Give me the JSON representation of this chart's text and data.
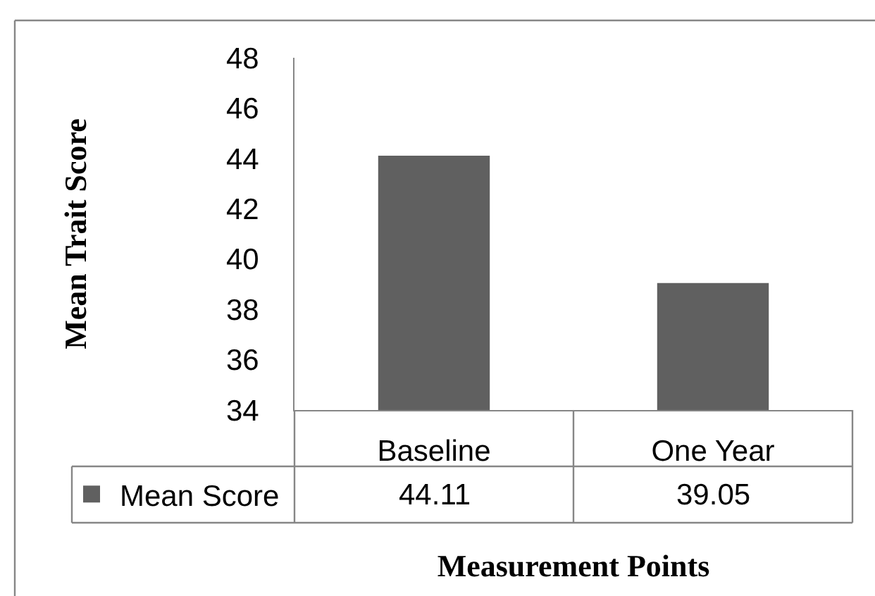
{
  "chart_data": {
    "type": "bar",
    "categories": [
      "Baseline",
      "One Year"
    ],
    "series": [
      {
        "name": "Mean Score",
        "color": "#606060",
        "values": [
          44.11,
          39.05
        ]
      }
    ],
    "ylabel": "Mean Trait Score",
    "xlabel": "Measurement Points",
    "ylim": [
      34,
      48
    ],
    "yticks": [
      34,
      36,
      38,
      40,
      42,
      44,
      46,
      48
    ],
    "legend": "bottom left",
    "data_labels": true
  }
}
